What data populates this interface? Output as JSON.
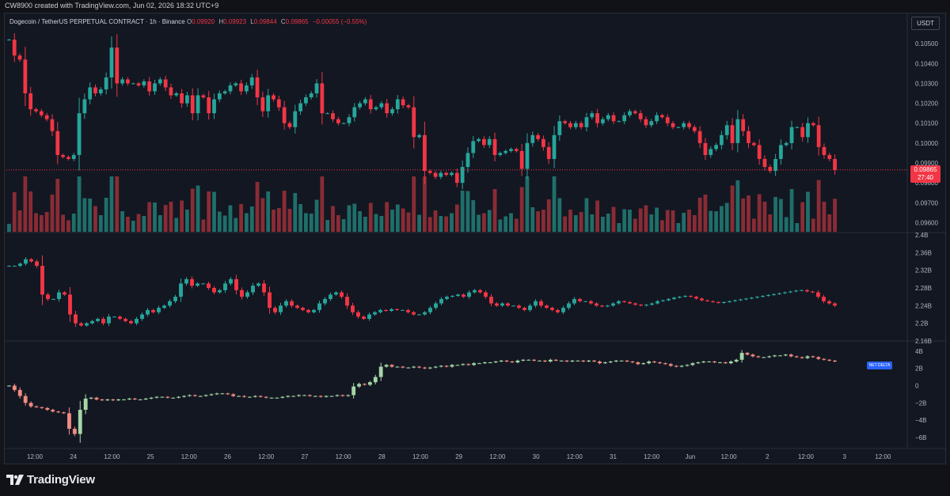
{
  "top_note": "CW8900 created with TradingView.com, Jun 02, 2026 18:32 UTC+9",
  "header": {
    "symbol": "Dogecoin / TetherUS PERPETUAL CONTRACT · 1h · Binance",
    "o_label": "O",
    "o": "0.09920",
    "h_label": "H",
    "h": "0.09923",
    "l_label": "L",
    "l": "0.09844",
    "c_label": "C",
    "c": "0.09865",
    "change": "−0.00055 (−0.55%)"
  },
  "currency_button": "USDT",
  "current_price": "0.09865",
  "countdown": "27:40",
  "net_delta_label": "NET DELTA",
  "colors": {
    "up": "#26a69a",
    "down": "#f23645",
    "up_dim": "#1f6f6a",
    "down_dim": "#8a2c35",
    "delta_up": "#a5d6a7",
    "delta_down": "#f28b82"
  },
  "brand": "TradingView",
  "price_axis": [
    "0.10500",
    "0.10400",
    "0.10300",
    "0.10200",
    "0.10100",
    "0.10000",
    "0.09900",
    "0.09800",
    "0.09700",
    "0.09600"
  ],
  "oi_axis": [
    "2.4B",
    "2.36B",
    "2.32B",
    "2.28B",
    "2.24B",
    "2.2B",
    "2.16B"
  ],
  "delta_axis": [
    "4B",
    "2B",
    "0",
    "−2B",
    "−4B",
    "−6B"
  ],
  "time_axis": [
    "12:00",
    "24",
    "12:00",
    "25",
    "12:00",
    "26",
    "12:00",
    "27",
    "12:00",
    "28",
    "12:00",
    "29",
    "12:00",
    "30",
    "12:00",
    "31",
    "12:00",
    "Jun",
    "12:00",
    "2",
    "12:00",
    "3",
    "12:00"
  ],
  "chart_data": [
    {
      "type": "candlestick",
      "title": "Dogecoin / TetherUS PERPETUAL CONTRACT · 1h · Binance",
      "ylim": [
        0.0955,
        0.106
      ],
      "series": [
        {
          "name": "DOGEUSDT.P",
          "close": [
            0.1052,
            0.1044,
            0.1042,
            0.1025,
            0.1017,
            0.1016,
            0.1014,
            0.1012,
            0.1006,
            0.0994,
            0.0993,
            0.0992,
            0.0994,
            0.1015,
            0.1022,
            0.1028,
            0.1025,
            0.1027,
            0.1033,
            0.1048,
            0.103,
            0.1032,
            0.103,
            0.103,
            0.1029,
            0.1031,
            0.1026,
            0.103,
            0.1032,
            0.1028,
            0.1024,
            0.1025,
            0.102,
            0.1024,
            0.1015,
            0.1024,
            0.1023,
            0.1015,
            0.1022,
            0.1025,
            0.1026,
            0.1029,
            0.103,
            0.1026,
            0.1029,
            0.1033,
            0.1023,
            0.1016,
            0.1024,
            0.1022,
            0.1018,
            0.101,
            0.1008,
            0.1016,
            0.102,
            0.1023,
            0.1025,
            0.103,
            0.1015,
            0.1015,
            0.1012,
            0.101,
            0.101,
            0.1013,
            0.1018,
            0.102,
            0.1022,
            0.1017,
            0.1018,
            0.102,
            0.1015,
            0.1017,
            0.1022,
            0.1019,
            0.1018,
            0.1003,
            0.1004,
            0.0986,
            0.0985,
            0.0983,
            0.0985,
            0.0984,
            0.0985,
            0.098,
            0.0988,
            0.0995,
            0.1001,
            0.1002,
            0.0999,
            0.1002,
            0.0994,
            0.0995,
            0.0996,
            0.0997,
            0.0996,
            0.0987,
            0.1,
            0.1004,
            0.1002,
            0.0998,
            0.0992,
            0.1004,
            0.1011,
            0.101,
            0.1008,
            0.101,
            0.1008,
            0.1013,
            0.1015,
            0.101,
            0.1012,
            0.1014,
            0.1011,
            0.1011,
            0.1014,
            0.1016,
            0.1015,
            0.1012,
            0.1009,
            0.1011,
            0.1014,
            0.1013,
            0.101,
            0.1008,
            0.1008,
            0.101,
            0.1008,
            0.1006,
            0.1,
            0.0994,
            0.0997,
            0.0999,
            0.1004,
            0.1009,
            0.1,
            0.1012,
            0.1006,
            0.1,
            0.0999,
            0.0992,
            0.0988,
            0.0986,
            0.0992,
            0.0999,
            0.1,
            0.1008,
            0.1008,
            0.1003,
            0.101,
            0.1009,
            0.0998,
            0.0994,
            0.0992,
            0.09865
          ]
        }
      ],
      "volume_ratio_note": "volume histogram (unlabeled)",
      "xlabel": "",
      "ylabel": ""
    },
    {
      "type": "candlestick",
      "title": "",
      "ylim": [
        2.16,
        2.4
      ],
      "series": [
        {
          "name": "",
          "close": [
            2.33,
            2.33,
            2.335,
            2.345,
            2.34,
            2.33,
            2.265,
            2.255,
            2.255,
            2.27,
            2.265,
            2.22,
            2.2,
            2.195,
            2.2,
            2.205,
            2.21,
            2.2,
            2.215,
            2.215,
            2.21,
            2.205,
            2.2,
            2.21,
            2.22,
            2.23,
            2.225,
            2.235,
            2.24,
            2.25,
            2.26,
            2.29,
            2.3,
            2.285,
            2.29,
            2.29,
            2.28,
            2.27,
            2.275,
            2.29,
            2.3,
            2.275,
            2.26,
            2.27,
            2.285,
            2.29,
            2.27,
            2.235,
            2.225,
            2.24,
            2.25,
            2.24,
            2.235,
            2.23,
            2.225,
            2.23,
            2.245,
            2.255,
            2.265,
            2.27,
            2.26,
            2.24,
            2.225,
            2.215,
            2.21,
            2.22,
            2.225,
            2.23,
            2.228,
            2.232,
            2.23,
            2.23,
            2.225,
            2.22,
            2.22,
            2.225,
            2.235,
            2.245,
            2.255,
            2.26,
            2.262,
            2.265,
            2.26,
            2.27,
            2.275,
            2.27,
            2.26,
            2.245,
            2.24,
            2.245,
            2.24,
            2.24,
            2.235,
            2.23,
            2.24,
            2.25,
            2.24,
            2.235,
            2.23,
            2.225,
            2.235,
            2.245,
            2.255,
            2.25,
            2.25,
            2.245,
            2.24,
            2.238,
            2.24,
            2.245,
            2.25,
            2.248,
            2.245,
            2.242,
            2.24,
            2.242,
            2.245,
            2.25,
            2.252,
            2.255,
            2.258,
            2.26,
            2.262,
            2.26,
            2.256,
            2.252,
            2.25,
            2.248,
            2.246,
            2.248,
            2.25,
            2.252,
            2.254,
            2.256,
            2.258,
            2.26,
            2.262,
            2.264,
            2.266,
            2.268,
            2.27,
            2.272,
            2.274,
            2.275,
            2.272,
            2.27,
            2.26,
            2.25,
            2.245,
            2.24
          ]
        }
      ]
    },
    {
      "type": "candlestick",
      "title": "",
      "ylim": [
        -7.2,
        5.0
      ],
      "series": [
        {
          "name": "",
          "close": [
            0.0,
            -0.5,
            -1.2,
            -2.0,
            -2.4,
            -2.5,
            -2.6,
            -2.8,
            -3.0,
            -3.1,
            -3.2,
            -5.0,
            -5.6,
            -2.8,
            -1.5,
            -1.4,
            -1.6,
            -1.7,
            -1.6,
            -1.7,
            -1.6,
            -1.6,
            -1.5,
            -1.6,
            -1.6,
            -1.5,
            -1.4,
            -1.3,
            -1.3,
            -1.4,
            -1.4,
            -1.3,
            -1.2,
            -1.1,
            -1.2,
            -1.2,
            -1.1,
            -1.0,
            -0.9,
            -0.9,
            -1.0,
            -1.2,
            -1.2,
            -1.3,
            -1.3,
            -1.2,
            -1.3,
            -1.4,
            -1.4,
            -1.4,
            -1.3,
            -1.2,
            -1.2,
            -1.1,
            -1.1,
            -1.2,
            -1.2,
            -1.3,
            -1.2,
            -1.2,
            -1.1,
            -1.2,
            -1.1,
            -0.1,
            0.2,
            0.1,
            0.4,
            1.0,
            2.2,
            2.4,
            2.2,
            2.2,
            2.1,
            2.1,
            2.2,
            2.1,
            2.0,
            2.1,
            2.2,
            2.3,
            2.2,
            2.4,
            2.4,
            2.5,
            2.4,
            2.6,
            2.6,
            2.7,
            2.7,
            2.8,
            2.9,
            2.8,
            2.7,
            2.9,
            3.0,
            3.0,
            2.9,
            2.9,
            2.8,
            3.0,
            2.9,
            2.9,
            2.8,
            2.9,
            2.9,
            2.8,
            2.9,
            2.8,
            2.6,
            2.7,
            2.8,
            2.9,
            2.9,
            2.8,
            2.7,
            2.5,
            2.6,
            2.8,
            2.7,
            2.6,
            2.5,
            2.3,
            2.2,
            2.3,
            2.4,
            2.6,
            2.7,
            2.8,
            2.8,
            2.7,
            2.7,
            2.6,
            2.8,
            3.0,
            3.8,
            3.6,
            3.4,
            3.3,
            3.3,
            3.4,
            3.5,
            3.5,
            3.6,
            3.4,
            3.3,
            3.2,
            3.4,
            3.3,
            3.1,
            3.0,
            2.9,
            2.8
          ]
        }
      ]
    }
  ]
}
